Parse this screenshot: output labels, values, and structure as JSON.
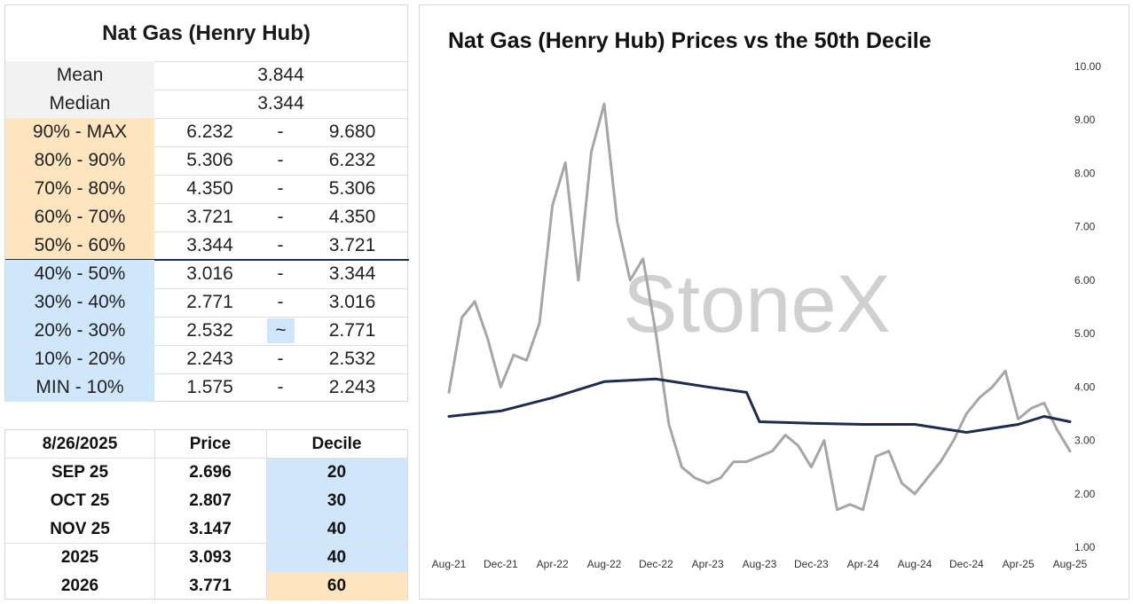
{
  "table": {
    "title": "Nat Gas (Henry Hub)",
    "mean_label": "Mean",
    "mean_value": "3.844",
    "median_label": "Median",
    "median_value": "3.344",
    "ranges": [
      {
        "label": "90% - MAX",
        "low": "6.232",
        "dash": "-",
        "high": "9.680",
        "band": "upper"
      },
      {
        "label": "80% - 90%",
        "low": "5.306",
        "dash": "-",
        "high": "6.232",
        "band": "upper"
      },
      {
        "label": "70% - 80%",
        "low": "4.350",
        "dash": "-",
        "high": "5.306",
        "band": "upper"
      },
      {
        "label": "60% - 70%",
        "low": "3.721",
        "dash": "-",
        "high": "4.350",
        "band": "upper"
      },
      {
        "label": "50% - 60%",
        "low": "3.344",
        "dash": "-",
        "high": "3.721",
        "band": "upper"
      },
      {
        "label": "40% - 50%",
        "low": "3.016",
        "dash": "-",
        "high": "3.344",
        "band": "lower"
      },
      {
        "label": "30% - 40%",
        "low": "2.771",
        "dash": "-",
        "high": "3.016",
        "band": "lower"
      },
      {
        "label": "20% - 30%",
        "low": "2.532",
        "dash": "~",
        "high": "2.771",
        "band": "lower",
        "highlight": true
      },
      {
        "label": "10% - 20%",
        "low": "2.243",
        "dash": "-",
        "high": "2.532",
        "band": "lower"
      },
      {
        "label": "MIN - 10%",
        "low": "1.575",
        "dash": "-",
        "high": "2.243",
        "band": "lower"
      }
    ]
  },
  "contracts": {
    "date_header": "8/26/2025",
    "price_header": "Price",
    "decile_header": "Decile",
    "rows": [
      {
        "contract": "SEP 25",
        "price": "2.696",
        "decile": "20",
        "band": "lower"
      },
      {
        "contract": "OCT 25",
        "price": "2.807",
        "decile": "30",
        "band": "lower"
      },
      {
        "contract": "NOV 25",
        "price": "3.147",
        "decile": "40",
        "band": "lower"
      },
      {
        "contract": "2025",
        "price": "3.093",
        "decile": "40",
        "band": "lower"
      },
      {
        "contract": "2026",
        "price": "3.771",
        "decile": "60",
        "band": "upper"
      }
    ]
  },
  "colors": {
    "upper_band": "#fde6bf",
    "lower_band": "#cfe6fb",
    "label_bg": "#f2f2f2",
    "price_line": "#a6a6a6",
    "median_line": "#1f2d4d",
    "watermark": "#d0d0d0"
  },
  "chart_data": {
    "type": "line",
    "title": "Nat Gas (Henry Hub) Prices vs the 50th Decile",
    "watermark": "StoneX",
    "x_tick_labels": [
      "Aug-21",
      "Dec-21",
      "Apr-22",
      "Aug-22",
      "Dec-22",
      "Apr-23",
      "Aug-23",
      "Dec-23",
      "Apr-24",
      "Aug-24",
      "Dec-24",
      "Apr-25",
      "Aug-25"
    ],
    "y_tick_labels": [
      "1.00",
      "2.00",
      "3.00",
      "4.00",
      "5.00",
      "6.00",
      "7.00",
      "8.00",
      "9.00",
      "10.00"
    ],
    "ylim": [
      1,
      10
    ],
    "xlim": [
      "2021-08",
      "2025-08"
    ],
    "y_axis_side": "right",
    "grid": false,
    "series": [
      {
        "key": "price",
        "x": [
          "2021-08",
          "2021-09",
          "2021-10",
          "2021-11",
          "2021-12",
          "2022-01",
          "2022-02",
          "2022-03",
          "2022-04",
          "2022-05",
          "2022-06",
          "2022-07",
          "2022-08",
          "2022-09",
          "2022-10",
          "2022-11",
          "2022-12",
          "2023-01",
          "2023-02",
          "2023-03",
          "2023-04",
          "2023-05",
          "2023-06",
          "2023-07",
          "2023-08",
          "2023-09",
          "2023-10",
          "2023-11",
          "2023-12",
          "2024-01",
          "2024-02",
          "2024-03",
          "2024-04",
          "2024-05",
          "2024-06",
          "2024-07",
          "2024-08",
          "2024-09",
          "2024-10",
          "2024-11",
          "2024-12",
          "2025-01",
          "2025-02",
          "2025-03",
          "2025-04",
          "2025-05",
          "2025-06",
          "2025-07",
          "2025-08"
        ],
        "values": [
          3.9,
          5.3,
          5.6,
          4.9,
          4.0,
          4.6,
          4.5,
          5.2,
          7.4,
          8.2,
          6.0,
          8.4,
          9.3,
          7.1,
          6.0,
          6.4,
          5.0,
          3.3,
          2.5,
          2.3,
          2.2,
          2.3,
          2.6,
          2.6,
          2.7,
          2.8,
          3.1,
          2.9,
          2.5,
          3.0,
          1.7,
          1.8,
          1.7,
          2.7,
          2.8,
          2.2,
          2.0,
          2.3,
          2.6,
          3.0,
          3.5,
          3.8,
          4.0,
          4.3,
          3.4,
          3.6,
          3.7,
          3.2,
          2.8
        ]
      },
      {
        "key": "median",
        "x": [
          "2021-08",
          "2021-12",
          "2022-04",
          "2022-08",
          "2022-12",
          "2023-04",
          "2023-07",
          "2023-08",
          "2023-12",
          "2024-04",
          "2024-08",
          "2024-12",
          "2025-04",
          "2025-06",
          "2025-08"
        ],
        "values": [
          3.45,
          3.55,
          3.8,
          4.1,
          4.15,
          4.0,
          3.9,
          3.35,
          3.32,
          3.3,
          3.3,
          3.15,
          3.3,
          3.45,
          3.35
        ]
      }
    ]
  }
}
